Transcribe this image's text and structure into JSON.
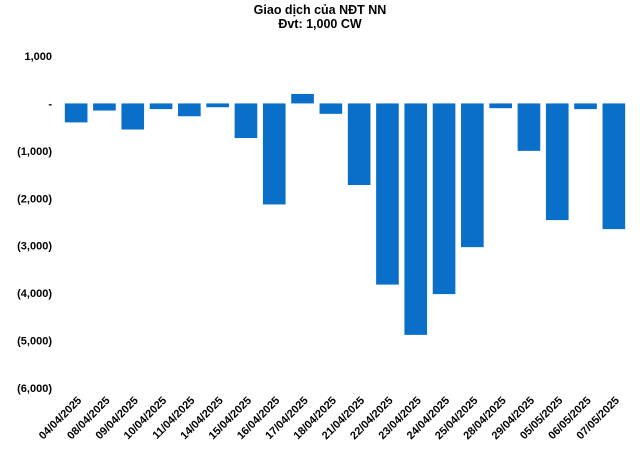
{
  "chart_data": {
    "type": "bar",
    "title": "Giao dịch của NĐT NN",
    "subtitle": "Đvt: 1,000 CW",
    "xlabel": "",
    "ylabel": "",
    "ylim": [
      -6000,
      1000
    ],
    "yticks": [
      1000,
      0,
      -1000,
      -2000,
      -3000,
      -4000,
      -5000,
      -6000
    ],
    "ytick_labels": [
      "1,000",
      "-",
      "(1,000)",
      "(2,000)",
      "(3,000)",
      "(4,000)",
      "(5,000)",
      "(6,000)"
    ],
    "grid": false,
    "legend": "none",
    "bar_color": "#0A6FC8",
    "categories": [
      "04/04/2025",
      "08/04/2025",
      "09/04/2025",
      "10/04/2025",
      "11/04/2025",
      "14/04/2025",
      "15/04/2025",
      "16/04/2025",
      "17/04/2025",
      "18/04/2025",
      "21/04/2025",
      "22/04/2025",
      "23/04/2025",
      "24/04/2025",
      "25/04/2025",
      "28/04/2025",
      "29/04/2025",
      "05/05/2025",
      "06/05/2025",
      "07/05/2025"
    ],
    "values": [
      -400,
      -150,
      -550,
      -120,
      -270,
      -80,
      -730,
      -2130,
      200,
      -220,
      -1720,
      -3820,
      -4880,
      -4020,
      -3030,
      -100,
      -1000,
      -2460,
      -120,
      -2650
    ]
  }
}
